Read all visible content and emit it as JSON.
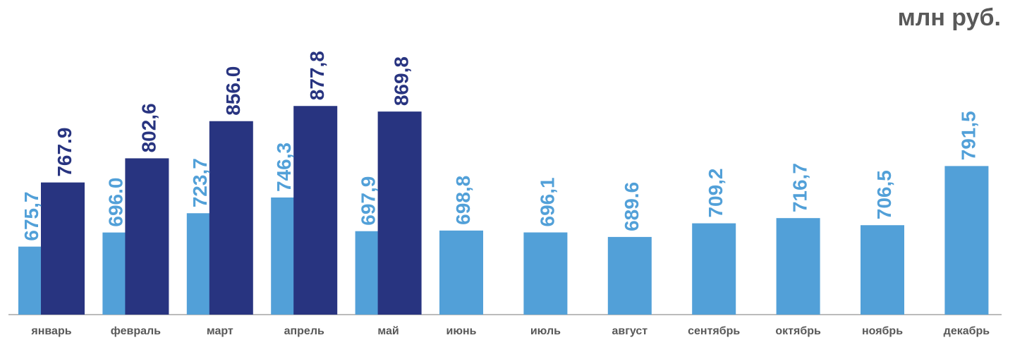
{
  "chart_data": {
    "type": "bar",
    "unit": "млн руб.",
    "categories": [
      "январь",
      "февраль",
      "март",
      "апрель",
      "май",
      "июнь",
      "июль",
      "август",
      "сентябрь",
      "октябрь",
      "ноябрь",
      "декабрь"
    ],
    "series": [
      {
        "color": "#52A0D8",
        "values": [
          675.7,
          696.0,
          723.7,
          746.3,
          697.9,
          698.8,
          696.1,
          689.6,
          709.2,
          716.7,
          706.5,
          791.5
        ],
        "labels": [
          "675,7",
          "696.0",
          "723,7",
          "746,3",
          "697,9",
          "698,8",
          "696,1",
          "689.6",
          "709,2",
          "716,7",
          "706,5",
          "791,5"
        ]
      },
      {
        "color": "#283480",
        "values": [
          767.9,
          802.6,
          856.0,
          877.8,
          869.8,
          null,
          null,
          null,
          null,
          null,
          null,
          null
        ],
        "labels": [
          "767.9",
          "802,6",
          "856.0",
          "877,8",
          "869,8",
          null,
          null,
          null,
          null,
          null,
          null,
          null
        ]
      }
    ],
    "ylim": [
      550,
      900
    ],
    "grid": false,
    "legend": "none"
  }
}
